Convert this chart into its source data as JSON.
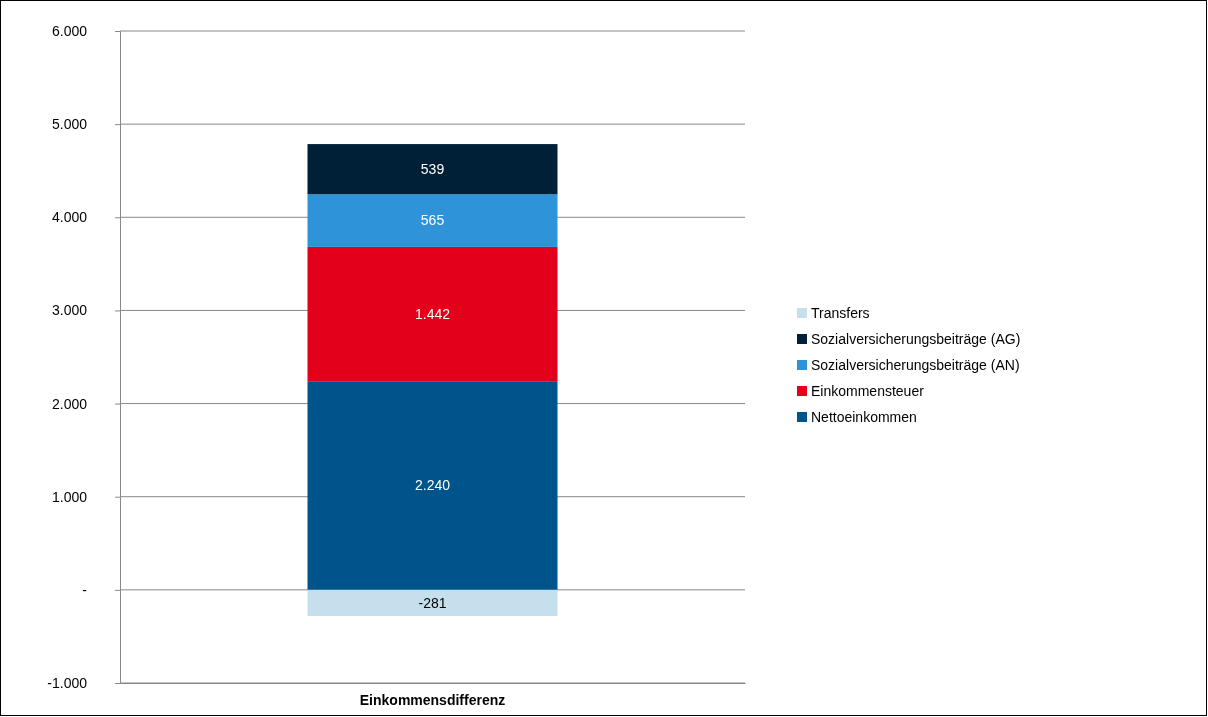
{
  "chart_data": {
    "type": "bar",
    "stacked": true,
    "categories": [
      "Einkommensdifferenz"
    ],
    "ylim": [
      -1000,
      6000
    ],
    "yticks": [
      {
        "value": -1000,
        "label": "-1.000"
      },
      {
        "value": 0,
        "label": "-"
      },
      {
        "value": 1000,
        "label": "1.000"
      },
      {
        "value": 2000,
        "label": "2.000"
      },
      {
        "value": 3000,
        "label": "3.000"
      },
      {
        "value": 4000,
        "label": "4.000"
      },
      {
        "value": 5000,
        "label": "5.000"
      },
      {
        "value": 6000,
        "label": "6.000"
      }
    ],
    "grid": "y",
    "legend": "right",
    "series": [
      {
        "name": "Nettoeinkommen",
        "color": "#00548c",
        "values": [
          2240
        ],
        "value_labels": [
          "2.240"
        ]
      },
      {
        "name": "Einkommensteuer",
        "color": "#e2001a",
        "values": [
          1442
        ],
        "value_labels": [
          "1.442"
        ]
      },
      {
        "name": "Sozialversicherungsbeiträge (AN)",
        "color": "#2e93d8",
        "values": [
          565
        ],
        "value_labels": [
          "565"
        ]
      },
      {
        "name": "Sozialversicherungsbeiträge (AG)",
        "color": "#002037",
        "values": [
          539
        ],
        "value_labels": [
          "539"
        ]
      },
      {
        "name": "Transfers",
        "color": "#c5dfec",
        "values": [
          -281
        ],
        "value_labels": [
          "-281"
        ]
      }
    ]
  }
}
